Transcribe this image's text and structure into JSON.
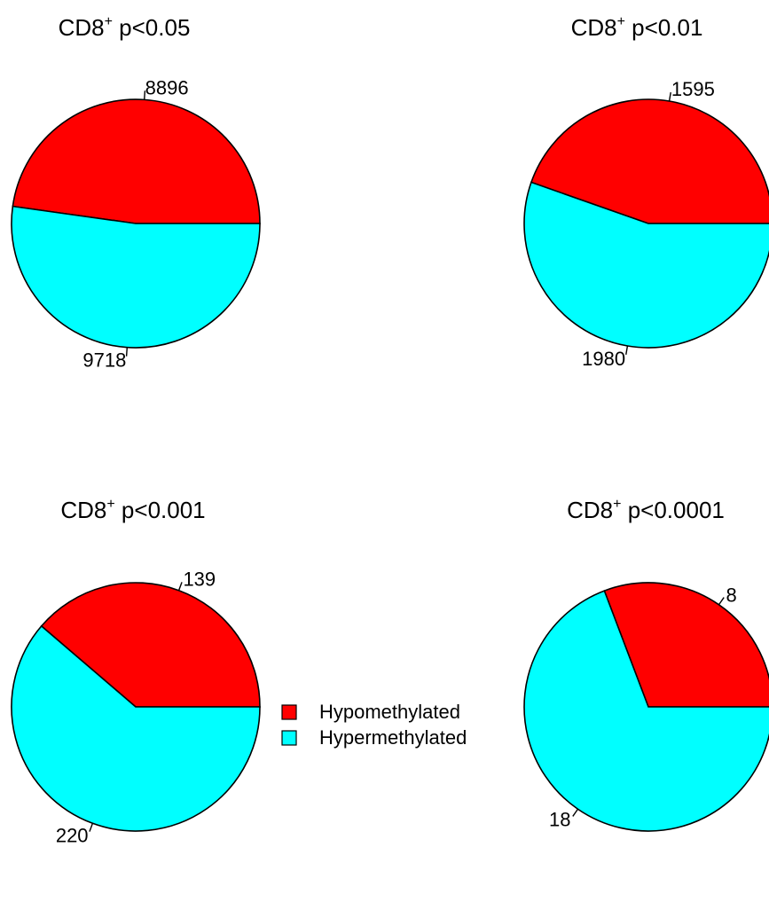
{
  "chart_data": [
    {
      "type": "pie",
      "title": {
        "prefix": "CD8",
        "sup": "+",
        "suffix": " p<0.05"
      },
      "labels": [
        "Hypomethylated",
        "Hypermethylated"
      ],
      "values": [
        8896,
        9718
      ],
      "colors": [
        "#ff0000",
        "#00ffff"
      ]
    },
    {
      "type": "pie",
      "title": {
        "prefix": "CD8",
        "sup": "+",
        "suffix": " p<0.01"
      },
      "labels": [
        "Hypomethylated",
        "Hypermethylated"
      ],
      "values": [
        1595,
        1980
      ],
      "colors": [
        "#ff0000",
        "#00ffff"
      ]
    },
    {
      "type": "pie",
      "title": {
        "prefix": "CD8",
        "sup": "+",
        "suffix": " p<0.001"
      },
      "labels": [
        "Hypomethylated",
        "Hypermethylated"
      ],
      "values": [
        139,
        220
      ],
      "colors": [
        "#ff0000",
        "#00ffff"
      ]
    },
    {
      "type": "pie",
      "title": {
        "prefix": "CD8",
        "sup": "+",
        "suffix": " p<0.0001"
      },
      "labels": [
        "Hypomethylated",
        "Hypermethylated"
      ],
      "values": [
        8,
        18
      ],
      "colors": [
        "#ff0000",
        "#00ffff"
      ]
    }
  ],
  "legend": {
    "placement": "bottom-center",
    "items": [
      {
        "label": "Hypomethylated",
        "color": "#ff0000"
      },
      {
        "label": "Hypermethylated",
        "color": "#00ffff"
      }
    ]
  }
}
